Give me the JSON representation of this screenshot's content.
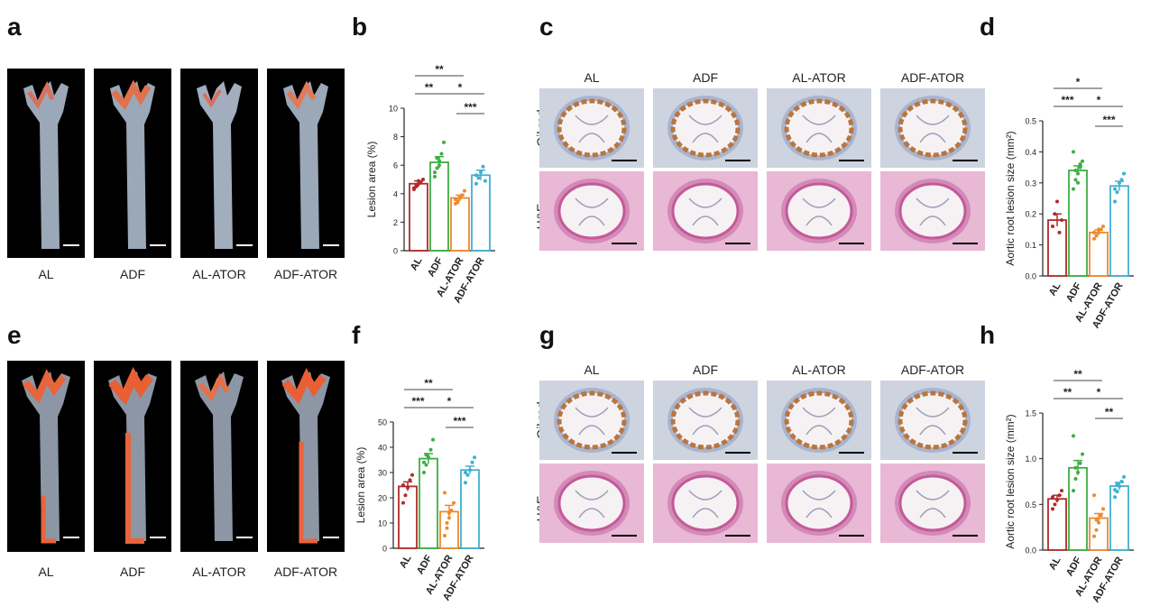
{
  "panels": {
    "a": "a",
    "b": "b",
    "c": "c",
    "d": "d",
    "e": "e",
    "f": "f",
    "g": "g",
    "h": "h"
  },
  "groups": [
    "AL",
    "ADF",
    "AL-ATOR",
    "ADF-ATOR"
  ],
  "stain_labels": {
    "oil": "Oil red",
    "he": "H&E"
  },
  "colors": {
    "AL": "#b22a2a",
    "ADF": "#3cae43",
    "AL-ATOR": "#f0892a",
    "ADF-ATOR": "#3fb0cf"
  },
  "chart_data": [
    {
      "id": "b",
      "type": "bar",
      "categories": [
        "AL",
        "ADF",
        "AL-ATOR",
        "ADF-ATOR"
      ],
      "values": [
        4.7,
        6.2,
        3.7,
        5.3
      ],
      "errors": [
        0.2,
        0.4,
        0.2,
        0.35
      ],
      "points": [
        [
          4.3,
          4.5,
          4.7,
          4.8,
          5.0,
          4.4,
          4.6,
          4.9
        ],
        [
          5.2,
          5.8,
          6.3,
          6.8,
          7.6,
          5.5,
          6.5,
          6.0
        ],
        [
          3.3,
          3.5,
          3.7,
          3.9,
          4.2,
          3.6,
          3.4,
          3.8
        ],
        [
          4.7,
          5.1,
          5.5,
          5.9,
          4.9,
          5.3
        ]
      ],
      "ylabel": "Lesion area (%)",
      "ylim": [
        0,
        10
      ],
      "yticks": [
        "0",
        "2",
        "4",
        "6",
        "8",
        "10"
      ],
      "sig": [
        {
          "from": 0,
          "to": 2,
          "label": "**"
        },
        {
          "from": 0,
          "to": 1,
          "label": "**"
        },
        {
          "from": 1,
          "to": 3,
          "label": "*"
        },
        {
          "from": 2,
          "to": 3,
          "label": "***"
        }
      ]
    },
    {
      "id": "d",
      "type": "bar",
      "categories": [
        "AL",
        "ADF",
        "AL-ATOR",
        "ADF-ATOR"
      ],
      "values": [
        0.18,
        0.34,
        0.14,
        0.29
      ],
      "errors": [
        0.02,
        0.015,
        0.008,
        0.015
      ],
      "points": [
        [
          0.16,
          0.2,
          0.24,
          0.14,
          0.18
        ],
        [
          0.28,
          0.31,
          0.33,
          0.35,
          0.37,
          0.4,
          0.34,
          0.3,
          0.36
        ],
        [
          0.12,
          0.13,
          0.14,
          0.15,
          0.16,
          0.14,
          0.13,
          0.15
        ],
        [
          0.24,
          0.27,
          0.3,
          0.31,
          0.33,
          0.28
        ]
      ],
      "ylabel": "Aortic root lesion size (mm²)",
      "ylim": [
        0,
        0.5
      ],
      "yticks": [
        "0.0",
        "0.1",
        "0.2",
        "0.3",
        "0.4",
        "0.5"
      ],
      "sig": [
        {
          "from": 0,
          "to": 2,
          "label": "*"
        },
        {
          "from": 0,
          "to": 1,
          "label": "***"
        },
        {
          "from": 1,
          "to": 3,
          "label": "*"
        },
        {
          "from": 2,
          "to": 3,
          "label": "***"
        }
      ]
    },
    {
      "id": "f",
      "type": "bar",
      "categories": [
        "AL",
        "ADF",
        "AL-ATOR",
        "ADF-ATOR"
      ],
      "values": [
        24.5,
        35.5,
        14.5,
        31.0
      ],
      "errors": [
        1.8,
        2.0,
        2.5,
        1.5
      ],
      "points": [
        [
          18,
          21,
          24,
          27,
          29,
          25
        ],
        [
          30,
          33,
          36,
          39,
          43,
          34,
          37
        ],
        [
          5,
          8,
          12,
          15,
          18,
          22,
          10,
          14
        ],
        [
          26,
          29,
          31,
          34,
          36,
          30
        ]
      ],
      "ylabel": "Lesion area (%)",
      "ylim": [
        0,
        50
      ],
      "yticks": [
        "0",
        "10",
        "20",
        "30",
        "40",
        "50"
      ],
      "sig": [
        {
          "from": 0,
          "to": 2,
          "label": "**"
        },
        {
          "from": 0,
          "to": 1,
          "label": "***"
        },
        {
          "from": 1,
          "to": 3,
          "label": "*"
        },
        {
          "from": 2,
          "to": 3,
          "label": "***"
        }
      ]
    },
    {
      "id": "h",
      "type": "bar",
      "categories": [
        "AL",
        "ADF",
        "AL-ATOR",
        "ADF-ATOR"
      ],
      "values": [
        0.56,
        0.9,
        0.35,
        0.7
      ],
      "errors": [
        0.04,
        0.08,
        0.05,
        0.04
      ],
      "points": [
        [
          0.45,
          0.5,
          0.55,
          0.6,
          0.65,
          0.58
        ],
        [
          0.65,
          0.78,
          0.85,
          0.95,
          1.05,
          1.25,
          0.9
        ],
        [
          0.15,
          0.22,
          0.3,
          0.38,
          0.45,
          0.6,
          0.33
        ],
        [
          0.58,
          0.64,
          0.7,
          0.75,
          0.8,
          0.66,
          0.72
        ]
      ],
      "ylabel": "Aortic root lesion size (mm²)",
      "ylim": [
        0,
        1.5
      ],
      "yticks": [
        "0.0",
        "0.5",
        "1.0",
        "1.5"
      ],
      "sig": [
        {
          "from": 0,
          "to": 2,
          "label": "**"
        },
        {
          "from": 0,
          "to": 1,
          "label": "**"
        },
        {
          "from": 1,
          "to": 3,
          "label": "*"
        },
        {
          "from": 2,
          "to": 3,
          "label": "**"
        }
      ]
    }
  ]
}
